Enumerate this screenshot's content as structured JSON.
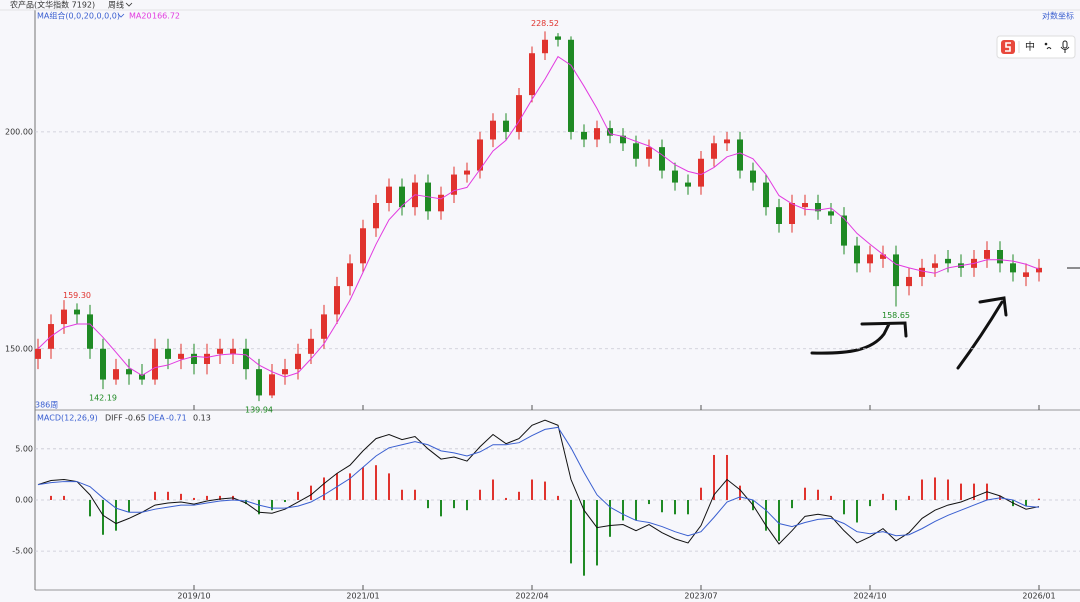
{
  "header": {
    "symbol": "农产品(文华指数 7192)",
    "period": "周线"
  },
  "toolbar": {
    "label": "中"
  },
  "chart_data": [
    {
      "type": "candlestick",
      "indicator_label": "MA组合(0,0,20,0,0,0)",
      "count_label": "386周",
      "log_scale": true,
      "log_scale_label": "对数坐标",
      "up_color": "#e0332e",
      "down_color": "#1f8a24",
      "grid": true,
      "categories": [
        null,
        null,
        null,
        null,
        null,
        null,
        null,
        null,
        null,
        null,
        null,
        null,
        "2019/10",
        null,
        null,
        null,
        null,
        null,
        null,
        null,
        null,
        null,
        null,
        null,
        null,
        "2021/01",
        null,
        null,
        null,
        null,
        null,
        null,
        null,
        null,
        null,
        null,
        null,
        null,
        "2022/04",
        null,
        null,
        null,
        null,
        null,
        null,
        null,
        null,
        null,
        null,
        null,
        null,
        "2023/07",
        null,
        null,
        null,
        null,
        null,
        null,
        null,
        null,
        null,
        null,
        null,
        null,
        "2024/10",
        null,
        null,
        null,
        null,
        null,
        null,
        null,
        null,
        null,
        null,
        null,
        null,
        "2026/01"
      ],
      "open": [
        148,
        150,
        155,
        158,
        157,
        150,
        144,
        146,
        145,
        144,
        150,
        148,
        149,
        147,
        149,
        149,
        150,
        146,
        141,
        145,
        146,
        149,
        152,
        157,
        163,
        168,
        176,
        182,
        186,
        181,
        187,
        180,
        184,
        189,
        190,
        198,
        203,
        200,
        210,
        222,
        227,
        226,
        200,
        198,
        201,
        199,
        197,
        193,
        196,
        190,
        187,
        186,
        193,
        197,
        198,
        190,
        187,
        181,
        177,
        181,
        182,
        180,
        179,
        172,
        168,
        169,
        170,
        163,
        165,
        167,
        169,
        168,
        167,
        169,
        171,
        168,
        165,
        166
      ],
      "high": [
        152,
        157,
        160,
        159.3,
        159,
        152,
        148,
        148,
        147,
        152,
        152,
        151,
        151,
        151,
        152,
        152,
        152,
        148,
        147,
        148,
        151,
        154,
        159,
        165,
        170,
        178,
        184,
        188,
        188,
        189,
        189,
        186,
        191,
        192,
        200,
        205,
        205,
        212,
        224,
        228.52,
        228,
        227,
        202,
        203,
        203,
        201,
        199,
        198,
        198,
        192,
        189,
        195,
        199,
        200,
        200,
        192,
        189,
        183,
        184,
        184,
        184,
        182,
        181,
        174,
        172,
        172,
        172,
        167,
        169,
        170,
        171,
        170,
        171,
        173,
        173,
        170,
        168,
        169
      ],
      "low": [
        146,
        148,
        153,
        155,
        148,
        142.19,
        143,
        143,
        143,
        143,
        146,
        146,
        145,
        145,
        147,
        147,
        144,
        139.94,
        140.5,
        143,
        144,
        147,
        150,
        155,
        161,
        166,
        174,
        180,
        179,
        179,
        178,
        178,
        182,
        187,
        188,
        196,
        198,
        198,
        208,
        220,
        224,
        198,
        196,
        196,
        197,
        195,
        191,
        191,
        188,
        185,
        184,
        184,
        191,
        195,
        188,
        185,
        179,
        175,
        175,
        179,
        178,
        177,
        170,
        166,
        166,
        167,
        158.65,
        161,
        163,
        165,
        166,
        165,
        165,
        167,
        166,
        164,
        163,
        164
      ],
      "close": [
        150,
        155,
        158,
        157,
        150,
        144,
        146,
        145,
        144,
        150,
        148,
        149,
        147,
        149,
        150,
        150,
        146,
        141,
        145,
        146,
        149,
        152,
        157,
        163,
        168,
        176,
        182,
        186,
        181,
        187,
        180,
        184,
        189,
        190,
        198,
        203,
        200,
        210,
        222,
        226,
        226,
        200,
        198,
        201,
        199,
        197,
        193,
        196,
        190,
        187,
        186,
        193,
        197,
        198,
        190,
        187,
        181,
        177,
        182,
        182,
        180,
        179,
        172,
        168,
        170,
        170,
        163,
        165,
        167,
        168,
        168,
        167,
        169,
        171,
        168,
        166,
        166,
        167
      ],
      "series": [
        {
          "name": "MA20",
          "color": "#e23be0",
          "values": [
            150,
            152.5,
            154.3,
            155,
            155,
            152.3,
            149.3,
            146.3,
            144.8,
            146.3,
            146.8,
            147.8,
            148.5,
            148.3,
            148.8,
            149,
            148.8,
            146.8,
            145.5,
            144.5,
            145.3,
            148,
            151,
            155.3,
            160,
            166,
            172.3,
            178,
            181.3,
            184,
            183.5,
            183,
            185,
            185.8,
            190.3,
            195,
            197.8,
            202.8,
            208.8,
            214.5,
            221,
            218.5,
            212.5,
            206.3,
            199.5,
            198.8,
            197.5,
            196.3,
            194,
            191.5,
            189.8,
            189,
            190.8,
            193.5,
            194.5,
            193,
            189,
            183.8,
            181.8,
            180.5,
            180.3,
            180.8,
            178.3,
            174.8,
            172.3,
            170,
            167.8,
            167,
            166.3,
            165.8,
            167,
            167.5,
            168,
            168.8,
            168.8,
            168.5,
            167.8,
            166.72
          ]
        }
      ],
      "ylim": [
        138.3,
        235.1
      ],
      "yticks": [
        {
          "value": 150,
          "label": "150.00"
        },
        {
          "value": 200,
          "label": "200.00"
        }
      ],
      "annotations": [
        {
          "value": 159.3,
          "label": "159.30"
        },
        {
          "value": 142.19,
          "label": "142.19"
        },
        {
          "value": 139.94,
          "label": "139.94"
        },
        {
          "value": 228.52,
          "label": "228.52"
        },
        {
          "value": 158.65,
          "label": "158.65"
        }
      ]
    },
    {
      "type": "macd",
      "title": "MACD(12,26,9)",
      "grid": true,
      "series": [
        {
          "name": "DIFF",
          "color": "#111111",
          "values": [
            1.5,
            1.9,
            2.0,
            1.8,
            0.5,
            -1.5,
            -2.3,
            -1.8,
            -1.2,
            -0.5,
            -0.3,
            -0.2,
            -0.4,
            -0.1,
            0.1,
            0.2,
            -0.3,
            -1.2,
            -1.3,
            -0.9,
            -0.2,
            0.5,
            1.6,
            2.6,
            3.4,
            4.8,
            6.0,
            6.4,
            5.9,
            6.2,
            5.0,
            4.0,
            4.2,
            3.8,
            5.2,
            6.4,
            5.5,
            6.0,
            7.3,
            7.8,
            7.3,
            2.0,
            -1.0,
            -2.7,
            -2.5,
            -2.4,
            -3.0,
            -2.4,
            -3.2,
            -3.8,
            -4.2,
            -2.5,
            0.5,
            2.0,
            1.0,
            -0.5,
            -2.5,
            -4.3,
            -3.0,
            -1.6,
            -1.4,
            -1.6,
            -3.0,
            -4.2,
            -3.6,
            -2.8,
            -4.0,
            -3.2,
            -1.8,
            -1.0,
            -0.5,
            -0.2,
            0.3,
            0.8,
            0.4,
            -0.3,
            -0.9,
            -0.65
          ]
        },
        {
          "name": "DEA",
          "color": "#3a5fd0",
          "values": [
            1.5,
            1.7,
            1.8,
            1.8,
            1.3,
            0.2,
            -0.8,
            -1.2,
            -1.2,
            -0.9,
            -0.7,
            -0.5,
            -0.5,
            -0.3,
            -0.1,
            0.0,
            -0.1,
            -0.5,
            -0.8,
            -0.8,
            -0.6,
            -0.2,
            0.5,
            1.3,
            2.1,
            3.2,
            4.3,
            5.1,
            5.4,
            5.7,
            5.4,
            4.8,
            4.6,
            4.3,
            4.7,
            5.4,
            5.4,
            5.6,
            6.3,
            6.9,
            7.1,
            5.1,
            2.7,
            0.5,
            -0.7,
            -1.4,
            -2.0,
            -2.2,
            -2.6,
            -3.1,
            -3.5,
            -3.1,
            -1.7,
            -0.2,
            0.3,
            0.0,
            -1.0,
            -2.3,
            -2.6,
            -2.2,
            -1.9,
            -1.8,
            -2.3,
            -3.1,
            -3.3,
            -3.1,
            -3.5,
            -3.4,
            -2.8,
            -2.1,
            -1.5,
            -1.0,
            -0.5,
            0.0,
            0.2,
            0.0,
            -0.6,
            -0.71
          ]
        }
      ],
      "histogram": {
        "up_color": "#e0332e",
        "down_color": "#1f8a24",
        "values": [
          0,
          0.4,
          0.4,
          0,
          -1.6,
          -3.4,
          -3.0,
          -1.2,
          0,
          0.8,
          0.8,
          0.6,
          0.2,
          0.4,
          0.4,
          0.4,
          -0.4,
          -1.4,
          -1.0,
          -0.2,
          0.8,
          1.4,
          2.2,
          2.6,
          2.6,
          3.2,
          3.4,
          2.6,
          1.0,
          1.0,
          -0.8,
          -1.6,
          -0.8,
          -1.0,
          1.0,
          2.0,
          0.2,
          0.8,
          2.0,
          1.8,
          0.4,
          -6.2,
          -7.4,
          -6.4,
          -3.6,
          -2.0,
          -2.0,
          -0.4,
          -1.2,
          -1.4,
          -1.4,
          1.2,
          4.4,
          4.4,
          1.4,
          -1.0,
          -3.0,
          -4.0,
          -0.8,
          1.2,
          1.0,
          0.4,
          -1.4,
          -2.2,
          -0.6,
          0.6,
          -1.0,
          0.4,
          2.0,
          2.2,
          2.0,
          1.6,
          1.6,
          1.6,
          0.4,
          -0.6,
          -0.6,
          0.13
        ]
      },
      "ylim": [
        -8.8,
        8.6
      ],
      "yticks": [
        {
          "value": 5,
          "label": "5.00"
        },
        {
          "value": 0,
          "label": "0.00"
        },
        {
          "value": -5,
          "label": "-5.00"
        }
      ]
    }
  ]
}
